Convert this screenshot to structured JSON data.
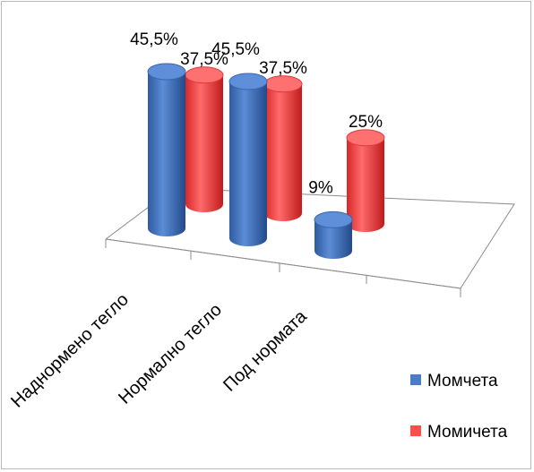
{
  "chart_data": {
    "type": "bar",
    "subtype": "3d-cylinder",
    "title": "",
    "categories": [
      "Наднормено тегло",
      "Нормално тегло",
      "Под нормата"
    ],
    "series": [
      {
        "name": "Момчета",
        "values": [
          45.5,
          45.5,
          9
        ],
        "labels": [
          "45,5%",
          "45,5%",
          "9%"
        ],
        "color": "#4a7cc7"
      },
      {
        "name": "Момичета",
        "values": [
          37.5,
          37.5,
          25
        ],
        "labels": [
          "37,5%",
          "37,5%",
          "25%"
        ],
        "color": "#ff4d4d"
      }
    ],
    "ylim": [
      0,
      45.5
    ],
    "grid": false,
    "legend": "right"
  }
}
